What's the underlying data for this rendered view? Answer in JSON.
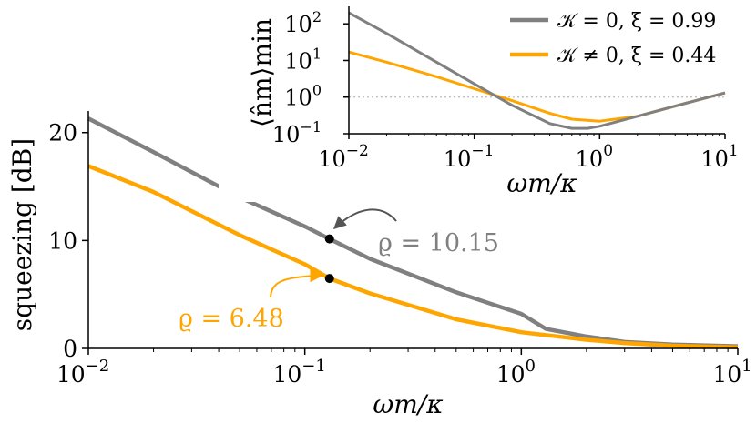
{
  "chart_data": [
    {
      "type": "line",
      "xscale": "log",
      "xlim": [
        0.01,
        10
      ],
      "ylim": [
        0,
        22
      ],
      "xlabel": "ωm/κ",
      "ylabel": "squeezing [dB]",
      "x_ticks": [
        0.01,
        0.1,
        1,
        10
      ],
      "x_tick_labels": [
        "10",
        "10",
        "10",
        "10"
      ],
      "x_tick_exponents": [
        "−2",
        "−1",
        "0",
        "1"
      ],
      "y_ticks": [
        0,
        10,
        20
      ],
      "y_tick_labels": [
        "0",
        "10",
        "20"
      ],
      "series": [
        {
          "color": "#808080",
          "x": [
            0.01,
            0.02,
            0.05,
            0.1,
            0.13,
            0.2,
            0.5,
            1.0,
            1.3,
            2,
            3,
            5,
            10
          ],
          "y": [
            21.3,
            18.2,
            14.0,
            11.3,
            10.15,
            8.3,
            5.2,
            3.2,
            1.8,
            1.1,
            0.6,
            0.35,
            0.2
          ]
        },
        {
          "color": "#FFA500",
          "x": [
            0.01,
            0.02,
            0.05,
            0.1,
            0.13,
            0.2,
            0.5,
            1.0,
            2,
            3,
            5,
            10
          ],
          "y": [
            16.9,
            14.5,
            10.5,
            7.8,
            6.48,
            5.1,
            2.7,
            1.5,
            0.8,
            0.5,
            0.25,
            0.1
          ]
        }
      ],
      "annotations": [
        {
          "text": "ϱ = 10.15",
          "x": 0.13,
          "y": 10.15,
          "color": "#808080"
        },
        {
          "text": "ϱ = 6.48",
          "x": 0.13,
          "y": 6.48,
          "color": "#FFA500"
        }
      ]
    },
    {
      "type": "line",
      "xscale": "log",
      "yscale": "log",
      "xlim": [
        0.01,
        10
      ],
      "ylim": [
        0.1,
        300
      ],
      "xlabel": "ωm/κ",
      "ylabel": "⟨n̂m⟩min",
      "x_ticks": [
        0.01,
        0.1,
        1,
        10
      ],
      "x_tick_labels": [
        "10",
        "10",
        "10",
        "10"
      ],
      "x_tick_exponents": [
        "−2",
        "−1",
        "0",
        "1"
      ],
      "y_ticks": [
        0.1,
        1,
        10,
        100
      ],
      "y_tick_labels": [
        "10",
        "10",
        "10",
        "10"
      ],
      "y_tick_exponents": [
        "−1",
        "0",
        "1",
        "2"
      ],
      "reference_line": {
        "y": 1,
        "style": "dotted"
      },
      "legend": "top-right",
      "series": [
        {
          "name": "𝒦 = 0,  ξ = 0.99",
          "color": "#808080",
          "x": [
            0.01,
            0.02,
            0.05,
            0.1,
            0.2,
            0.4,
            0.6,
            0.8,
            1.0,
            2,
            5,
            10
          ],
          "y": [
            200,
            55,
            9,
            2.3,
            0.6,
            0.19,
            0.14,
            0.14,
            0.16,
            0.3,
            0.7,
            1.3
          ]
        },
        {
          "name": "𝒦 ≠ 0,  ξ = 0.44",
          "color": "#FFA500",
          "x": [
            0.01,
            0.02,
            0.05,
            0.1,
            0.2,
            0.4,
            0.6,
            1.0,
            2,
            5,
            10
          ],
          "y": [
            17,
            9,
            3.6,
            1.7,
            0.8,
            0.36,
            0.25,
            0.22,
            0.3,
            0.7,
            1.3
          ]
        }
      ]
    }
  ]
}
